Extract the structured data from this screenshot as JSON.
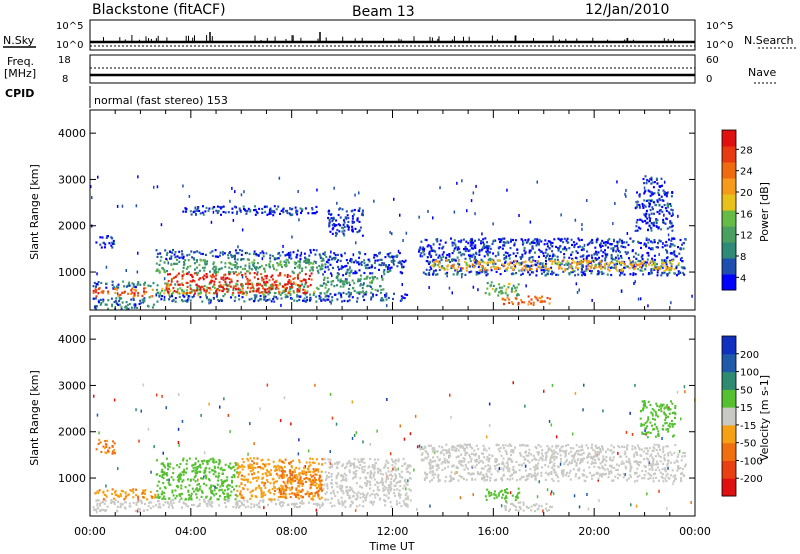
{
  "header": {
    "station": "Blackstone (fitACF)",
    "beam": "Beam 13",
    "date": "12/Jan/2010"
  },
  "params": {
    "nsky_label": "N.Sky",
    "nsearch_label": "N.Search",
    "freq_label_1": "Freq.",
    "freq_label_2": "[MHz]",
    "nave_label": "Nave",
    "cpid_label": "CPID",
    "nsky_ticks": [
      "10^5",
      "10^0"
    ],
    "nsearch_ticks": [
      "10^5",
      "10^0"
    ],
    "freq_ticks": [
      "18",
      "8"
    ],
    "nave_ticks": [
      "60",
      "0"
    ],
    "cpid_text": "normal (fast stereo) 153"
  },
  "chart_data": [
    {
      "type": "heatmap",
      "name": "power",
      "ylabel": "Slant Range [km]",
      "xlabel": "",
      "ylim": [
        180,
        4500
      ],
      "yticks": [
        "4000",
        "3000",
        "2000",
        "1000"
      ],
      "xlim": [
        "00:00",
        "24:00"
      ],
      "colorbar": {
        "label": "Power [dB]",
        "ticks": [
          "28",
          "24",
          "20",
          "16",
          "12",
          "8",
          "4"
        ],
        "colors": [
          "#0000ff",
          "#1e4fb0",
          "#2f8a78",
          "#4aa060",
          "#66bb44",
          "#e8c21a",
          "#f59a1a",
          "#f06a10",
          "#e83a10",
          "#e01010"
        ],
        "range": [
          0,
          30
        ]
      },
      "regions": [
        {
          "t0": 0.1,
          "t1": 2.5,
          "r0": 220,
          "r1": 480,
          "level": 6
        },
        {
          "t0": 0.1,
          "t1": 2.5,
          "r0": 480,
          "r1": 680,
          "level": 24
        },
        {
          "t0": 0.1,
          "t1": 2.5,
          "r0": 680,
          "r1": 820,
          "level": 6
        },
        {
          "t0": 0.2,
          "t1": 1.0,
          "r0": 1550,
          "r1": 1800,
          "level": 3
        },
        {
          "t0": 2.6,
          "t1": 9.2,
          "r0": 380,
          "r1": 520,
          "level": 5
        },
        {
          "t0": 2.6,
          "t1": 9.2,
          "r0": 520,
          "r1": 780,
          "level": 12
        },
        {
          "t0": 3.0,
          "t1": 8.8,
          "r0": 560,
          "r1": 1000,
          "level": 27
        },
        {
          "t0": 2.6,
          "t1": 9.2,
          "r0": 1000,
          "r1": 1300,
          "level": 10
        },
        {
          "t0": 2.6,
          "t1": 9.2,
          "r0": 1300,
          "r1": 1500,
          "level": 4
        },
        {
          "t0": 3.5,
          "t1": 9.0,
          "r0": 2250,
          "r1": 2450,
          "level": 3
        },
        {
          "t0": 9.0,
          "t1": 12.7,
          "r0": 380,
          "r1": 560,
          "level": 3
        },
        {
          "t0": 9.2,
          "t1": 11.6,
          "r0": 560,
          "r1": 950,
          "level": 9
        },
        {
          "t0": 9.2,
          "t1": 12.5,
          "r0": 950,
          "r1": 1450,
          "level": 4
        },
        {
          "t0": 9.4,
          "t1": 10.8,
          "r0": 1800,
          "r1": 2400,
          "level": 3
        },
        {
          "t0": 13.2,
          "t1": 23.6,
          "r0": 950,
          "r1": 1350,
          "level": 4
        },
        {
          "t0": 13.5,
          "t1": 23.4,
          "r0": 1050,
          "r1": 1280,
          "level": 18
        },
        {
          "t0": 16.3,
          "t1": 18.3,
          "r0": 300,
          "r1": 500,
          "level": 23
        },
        {
          "t0": 15.6,
          "t1": 17.0,
          "r0": 500,
          "r1": 800,
          "level": 12
        },
        {
          "t0": 13.0,
          "t1": 23.6,
          "r0": 1350,
          "r1": 1750,
          "level": 3
        },
        {
          "t0": 21.6,
          "t1": 23.1,
          "r0": 1900,
          "r1": 2800,
          "level": 3
        },
        {
          "t0": 21.9,
          "t1": 22.7,
          "r0": 2850,
          "r1": 3100,
          "level": 3
        }
      ]
    },
    {
      "type": "heatmap",
      "name": "velocity",
      "ylabel": "Slant Range [km]",
      "xlabel": "Time UT",
      "ylim": [
        180,
        4500
      ],
      "yticks": [
        "4000",
        "3000",
        "2000",
        "1000"
      ],
      "xlim": [
        "00:00",
        "24:00"
      ],
      "xticks": [
        "00:00",
        "04:00",
        "08:00",
        "12:00",
        "16:00",
        "20:00",
        "00:00"
      ],
      "colorbar": {
        "label": "Velocity [m s-1]",
        "ticks": [
          "200",
          "100",
          "50",
          "15",
          "-15",
          "-50",
          "-100",
          "-200"
        ],
        "colors": [
          "#1030c0",
          "#1e5aa8",
          "#2e8a70",
          "#55c030",
          "#c8c8c4",
          "#f5a015",
          "#f07010",
          "#e84010",
          "#e01010"
        ],
        "range": [
          -250,
          250
        ]
      },
      "regions": [
        {
          "t0": 0.1,
          "t1": 2.6,
          "r0": 300,
          "r1": 560,
          "velocity": 0
        },
        {
          "t0": 0.1,
          "t1": 2.6,
          "r0": 560,
          "r1": 780,
          "velocity": -40
        },
        {
          "t0": 0.2,
          "t1": 1.0,
          "r0": 1550,
          "r1": 1850,
          "velocity": -60
        },
        {
          "t0": 2.6,
          "t1": 9.2,
          "r0": 380,
          "r1": 560,
          "velocity": 0
        },
        {
          "t0": 2.6,
          "t1": 5.8,
          "r0": 560,
          "r1": 1450,
          "velocity": 30
        },
        {
          "t0": 5.8,
          "t1": 9.2,
          "r0": 560,
          "r1": 1450,
          "velocity": -40
        },
        {
          "t0": 7.5,
          "t1": 9.2,
          "r0": 600,
          "r1": 1200,
          "velocity": -60
        },
        {
          "t0": 9.2,
          "t1": 12.7,
          "r0": 400,
          "r1": 1450,
          "velocity": 0
        },
        {
          "t0": 13.2,
          "t1": 23.6,
          "r0": 950,
          "r1": 1400,
          "velocity": 0
        },
        {
          "t0": 16.3,
          "t1": 18.3,
          "r0": 300,
          "r1": 500,
          "velocity": 0
        },
        {
          "t0": 15.6,
          "t1": 17.0,
          "r0": 500,
          "r1": 800,
          "velocity": 30
        },
        {
          "t0": 13.0,
          "t1": 23.6,
          "r0": 1400,
          "r1": 1750,
          "velocity": 0
        },
        {
          "t0": 21.8,
          "t1": 23.2,
          "r0": 1900,
          "r1": 2700,
          "velocity": 30
        }
      ]
    }
  ]
}
